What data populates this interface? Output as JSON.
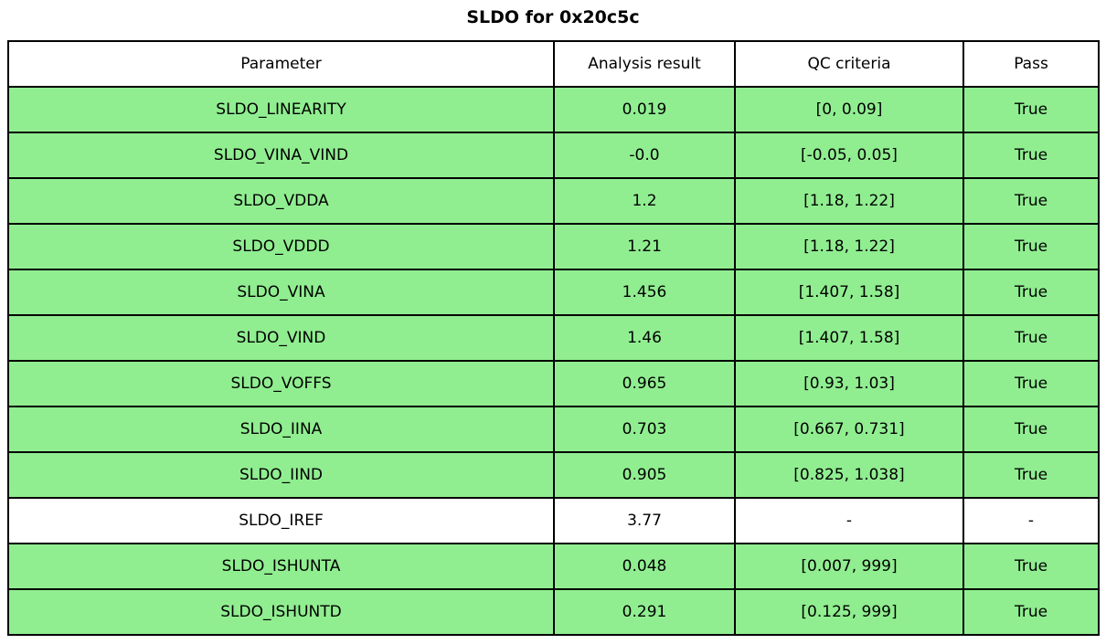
{
  "title": "SLDO for 0x20c5c",
  "colors": {
    "pass_green": "#90EE90",
    "neutral_white": "#ffffff",
    "border": "#000000",
    "text": "#000000"
  },
  "chart_data": {
    "type": "table",
    "title": "SLDO for 0x20c5c",
    "columns": [
      "Parameter",
      "Analysis result",
      "QC criteria",
      "Pass"
    ],
    "rows": [
      {
        "parameter": "SLDO_LINEARITY",
        "analysis_result": "0.019",
        "qc_criteria": "[0, 0.09]",
        "pass": "True",
        "highlight": true
      },
      {
        "parameter": "SLDO_VINA_VIND",
        "analysis_result": "-0.0",
        "qc_criteria": "[-0.05, 0.05]",
        "pass": "True",
        "highlight": true
      },
      {
        "parameter": "SLDO_VDDA",
        "analysis_result": "1.2",
        "qc_criteria": "[1.18, 1.22]",
        "pass": "True",
        "highlight": true
      },
      {
        "parameter": "SLDO_VDDD",
        "analysis_result": "1.21",
        "qc_criteria": "[1.18, 1.22]",
        "pass": "True",
        "highlight": true
      },
      {
        "parameter": "SLDO_VINA",
        "analysis_result": "1.456",
        "qc_criteria": "[1.407, 1.58]",
        "pass": "True",
        "highlight": true
      },
      {
        "parameter": "SLDO_VIND",
        "analysis_result": "1.46",
        "qc_criteria": "[1.407, 1.58]",
        "pass": "True",
        "highlight": true
      },
      {
        "parameter": "SLDO_VOFFS",
        "analysis_result": "0.965",
        "qc_criteria": "[0.93, 1.03]",
        "pass": "True",
        "highlight": true
      },
      {
        "parameter": "SLDO_IINA",
        "analysis_result": "0.703",
        "qc_criteria": "[0.667, 0.731]",
        "pass": "True",
        "highlight": true
      },
      {
        "parameter": "SLDO_IIND",
        "analysis_result": "0.905",
        "qc_criteria": "[0.825, 1.038]",
        "pass": "True",
        "highlight": true
      },
      {
        "parameter": "SLDO_IREF",
        "analysis_result": "3.77",
        "qc_criteria": "-",
        "pass": "-",
        "highlight": false
      },
      {
        "parameter": "SLDO_ISHUNTA",
        "analysis_result": "0.048",
        "qc_criteria": "[0.007, 999]",
        "pass": "True",
        "highlight": true
      },
      {
        "parameter": "SLDO_ISHUNTD",
        "analysis_result": "0.291",
        "qc_criteria": "[0.125, 999]",
        "pass": "True",
        "highlight": true
      }
    ]
  }
}
